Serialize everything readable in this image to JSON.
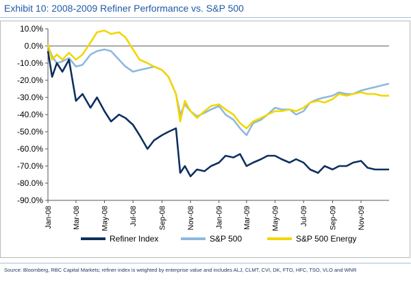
{
  "header": {
    "title": "Exhibit 10: 2008-2009 Refiner Performance vs. S&P 500"
  },
  "footer": {
    "source": "Source: Bloomberg, RBC Capital Markets; refiner index is weighted by enterprise value and includes ALJ, CLMT, CVI, DK, FTO, HFC, TSO, VLO and WNR"
  },
  "colors": {
    "refiner": "#0d2f5e",
    "sp500": "#8db8df",
    "energy": "#f2d600",
    "axis": "#555555",
    "grid_zero": "#555555"
  },
  "chart_data": {
    "type": "line",
    "title": "Exhibit 10: 2008-2009 Refiner Performance vs. S&P 500",
    "xlabel": "",
    "ylabel": "",
    "ylim": [
      -90,
      10
    ],
    "yticks": [
      10,
      0,
      -10,
      -20,
      -30,
      -40,
      -50,
      -60,
      -70,
      -80,
      -90
    ],
    "ytick_labels": [
      "10.0%",
      "0.0%",
      "-10.0%",
      "-20.0%",
      "-30.0%",
      "-40.0%",
      "-50.0%",
      "-60.0%",
      "-70.0%",
      "-80.0%",
      "-90.0%"
    ],
    "xlim": [
      "2008-01-01",
      "2009-12-31"
    ],
    "xticks": [
      "2008-01-01",
      "2008-03-01",
      "2008-05-01",
      "2008-07-01",
      "2008-09-01",
      "2008-11-01",
      "2009-01-01",
      "2009-03-01",
      "2009-05-01",
      "2009-07-01",
      "2009-09-01",
      "2009-11-01"
    ],
    "xtick_labels": [
      "Jan-08",
      "Mar-08",
      "May-08",
      "Jul-08",
      "Sep-08",
      "Nov-08",
      "Jan-09",
      "Mar-09",
      "May-09",
      "Jul-09",
      "Sep-09",
      "Nov-09"
    ],
    "legend_position": "bottom",
    "grid": false,
    "series": [
      {
        "name": "Refiner Index",
        "color_key": "refiner",
        "x": [
          "2008-01-01",
          "2008-01-10",
          "2008-01-20",
          "2008-02-01",
          "2008-02-15",
          "2008-03-01",
          "2008-03-15",
          "2008-04-01",
          "2008-04-15",
          "2008-05-01",
          "2008-05-15",
          "2008-06-01",
          "2008-06-15",
          "2008-07-01",
          "2008-07-15",
          "2008-08-01",
          "2008-08-15",
          "2008-09-01",
          "2008-09-15",
          "2008-10-01",
          "2008-10-10",
          "2008-10-20",
          "2008-11-01",
          "2008-11-15",
          "2008-12-01",
          "2008-12-15",
          "2009-01-01",
          "2009-01-15",
          "2009-02-01",
          "2009-02-15",
          "2009-03-01",
          "2009-03-15",
          "2009-04-01",
          "2009-04-15",
          "2009-05-01",
          "2009-05-15",
          "2009-06-01",
          "2009-06-15",
          "2009-07-01",
          "2009-07-15",
          "2009-08-01",
          "2009-08-15",
          "2009-09-01",
          "2009-09-15",
          "2009-10-01",
          "2009-10-15",
          "2009-11-01",
          "2009-11-15",
          "2009-12-01",
          "2009-12-15",
          "2009-12-31"
        ],
        "y": [
          -3,
          -18,
          -10,
          -15,
          -8,
          -32,
          -28,
          -36,
          -30,
          -38,
          -44,
          -40,
          -42,
          -46,
          -52,
          -60,
          -55,
          -52,
          -50,
          -48,
          -74,
          -70,
          -76,
          -72,
          -73,
          -70,
          -68,
          -64,
          -65,
          -63,
          -70,
          -68,
          -66,
          -64,
          -64,
          -66,
          -68,
          -66,
          -68,
          -72,
          -74,
          -70,
          -72,
          -70,
          -70,
          -68,
          -67,
          -71,
          -72,
          -72,
          -72
        ]
      },
      {
        "name": "S&P 500",
        "color_key": "sp500",
        "x": [
          "2008-01-01",
          "2008-01-10",
          "2008-01-20",
          "2008-02-01",
          "2008-02-15",
          "2008-03-01",
          "2008-03-15",
          "2008-04-01",
          "2008-04-15",
          "2008-05-01",
          "2008-05-15",
          "2008-06-01",
          "2008-06-15",
          "2008-07-01",
          "2008-07-15",
          "2008-08-01",
          "2008-08-15",
          "2008-09-01",
          "2008-09-15",
          "2008-10-01",
          "2008-10-10",
          "2008-10-20",
          "2008-11-01",
          "2008-11-15",
          "2008-12-01",
          "2008-12-15",
          "2009-01-01",
          "2009-01-15",
          "2009-02-01",
          "2009-02-15",
          "2009-03-01",
          "2009-03-15",
          "2009-04-01",
          "2009-04-15",
          "2009-05-01",
          "2009-05-15",
          "2009-06-01",
          "2009-06-15",
          "2009-07-01",
          "2009-07-15",
          "2009-08-01",
          "2009-08-15",
          "2009-09-01",
          "2009-09-15",
          "2009-10-01",
          "2009-10-15",
          "2009-11-01",
          "2009-11-15",
          "2009-12-01",
          "2009-12-15",
          "2009-12-31"
        ],
        "y": [
          0,
          -6,
          -10,
          -9,
          -7,
          -12,
          -11,
          -5,
          -3,
          -2,
          -3,
          -8,
          -12,
          -15,
          -14,
          -13,
          -12,
          -14,
          -18,
          -28,
          -40,
          -34,
          -38,
          -41,
          -39,
          -37,
          -35,
          -40,
          -43,
          -48,
          -52,
          -45,
          -43,
          -40,
          -36,
          -37,
          -37,
          -40,
          -38,
          -33,
          -31,
          -30,
          -29,
          -27,
          -28,
          -28,
          -26,
          -25,
          -24,
          -23,
          -22
        ]
      },
      {
        "name": "S&P 500 Energy",
        "color_key": "energy",
        "x": [
          "2008-01-01",
          "2008-01-10",
          "2008-01-20",
          "2008-02-01",
          "2008-02-15",
          "2008-03-01",
          "2008-03-15",
          "2008-04-01",
          "2008-04-15",
          "2008-05-01",
          "2008-05-15",
          "2008-06-01",
          "2008-06-15",
          "2008-07-01",
          "2008-07-15",
          "2008-08-01",
          "2008-08-15",
          "2008-09-01",
          "2008-09-15",
          "2008-10-01",
          "2008-10-10",
          "2008-10-20",
          "2008-11-01",
          "2008-11-15",
          "2008-12-01",
          "2008-12-15",
          "2009-01-01",
          "2009-01-15",
          "2009-02-01",
          "2009-02-15",
          "2009-03-01",
          "2009-03-15",
          "2009-04-01",
          "2009-04-15",
          "2009-05-01",
          "2009-05-15",
          "2009-06-01",
          "2009-06-15",
          "2009-07-01",
          "2009-07-15",
          "2009-08-01",
          "2009-08-15",
          "2009-09-01",
          "2009-09-15",
          "2009-10-01",
          "2009-10-15",
          "2009-11-01",
          "2009-11-15",
          "2009-12-01",
          "2009-12-15",
          "2009-12-31"
        ],
        "y": [
          1,
          -8,
          -5,
          -8,
          -4,
          -8,
          -5,
          2,
          8,
          9,
          7,
          8,
          5,
          -2,
          -8,
          -10,
          -12,
          -14,
          -18,
          -28,
          -44,
          -32,
          -38,
          -42,
          -38,
          -35,
          -34,
          -37,
          -40,
          -45,
          -48,
          -44,
          -42,
          -40,
          -38,
          -38,
          -37,
          -38,
          -36,
          -33,
          -32,
          -33,
          -31,
          -28,
          -29,
          -28,
          -27,
          -28,
          -28,
          -29,
          -29
        ]
      }
    ]
  }
}
